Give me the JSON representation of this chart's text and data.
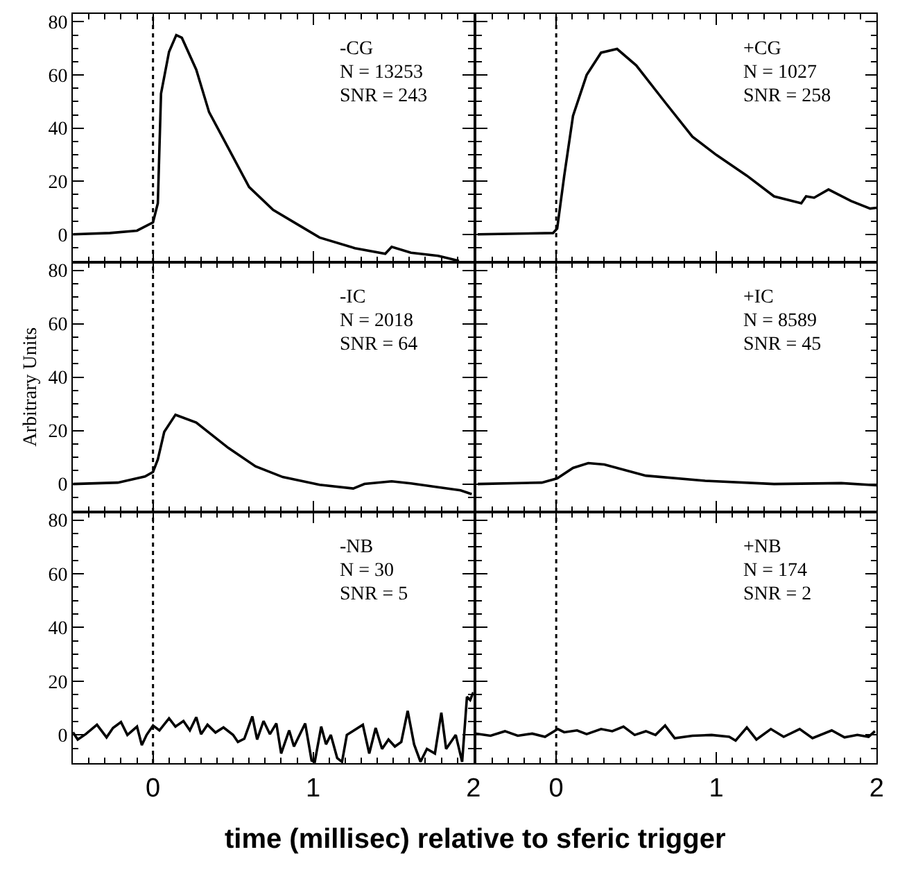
{
  "chart_data": [
    {
      "type": "line",
      "xlim": [
        -0.5,
        2
      ],
      "ylim": [
        -10.5,
        83
      ],
      "xticks": [
        0,
        1,
        2
      ],
      "yticks": [
        0,
        20,
        40,
        60,
        80
      ],
      "tick_labels": "y",
      "series": [
        {
          "color": "#000000",
          "x": [
            -0.5,
            -0.27,
            -0.1,
            0,
            0.03,
            0.05,
            0.1,
            0.145,
            0.18,
            0.27,
            0.35,
            0.47,
            0.6,
            0.75,
            0.92,
            1.04,
            1.26,
            1.45,
            1.49,
            1.61,
            1.78,
            1.91
          ],
          "values": [
            0,
            0.5,
            1.4,
            4.5,
            11.7,
            53,
            68.7,
            75,
            74,
            62,
            46,
            32.5,
            17.8,
            9.2,
            3.1,
            -1.2,
            -5.2,
            -7.3,
            -4.7,
            -6.9,
            -8.1,
            -10
          ]
        }
      ],
      "ref_lines": [
        {
          "axis": "x",
          "value": 0,
          "line_style": "dotted",
          "color": "#000000"
        }
      ],
      "annotations": [
        "-CG",
        "N = 13253",
        "SNR = 243"
      ]
    },
    {
      "type": "line",
      "xlim": [
        -0.5,
        2
      ],
      "ylim": [
        -10.5,
        83
      ],
      "xticks": [
        0,
        1,
        2
      ],
      "yticks": [
        0,
        20,
        40,
        60,
        80
      ],
      "tick_labels": false,
      "series": [
        {
          "color": "#000000",
          "x": [
            -0.49,
            -0.02,
            0.006,
            0.05,
            0.105,
            0.19,
            0.28,
            0.38,
            0.5,
            0.68,
            0.85,
            1.0,
            1.19,
            1.36,
            1.53,
            1.56,
            1.61,
            1.7,
            1.84,
            1.96,
            2.0
          ],
          "values": [
            0,
            0.5,
            2.2,
            22,
            44.6,
            60,
            68.4,
            69.8,
            63.6,
            49.7,
            36.8,
            29.9,
            22.1,
            14.3,
            11.7,
            14.3,
            13.8,
            16.9,
            12.6,
            9.7,
            10
          ]
        }
      ],
      "ref_lines": [
        {
          "axis": "x",
          "value": 0,
          "line_style": "dotted",
          "color": "#000000"
        }
      ],
      "annotations": [
        "+CG",
        "N = 1027",
        "SNR = 258"
      ]
    },
    {
      "type": "line",
      "ylabel": "Arbitrary Units",
      "xlim": [
        -0.5,
        2
      ],
      "ylim": [
        -10.5,
        83
      ],
      "xticks": [
        0,
        1,
        2
      ],
      "yticks": [
        0,
        20,
        40,
        60,
        80
      ],
      "tick_labels": "y",
      "series": [
        {
          "color": "#000000",
          "x": [
            -0.5,
            -0.22,
            -0.05,
            0,
            0.03,
            0.07,
            0.14,
            0.27,
            0.47,
            0.64,
            0.81,
            1.04,
            1.25,
            1.32,
            1.49,
            1.61,
            1.78,
            1.92,
            1.99
          ],
          "values": [
            0,
            0.5,
            2.8,
            4.5,
            9.2,
            19.5,
            25.9,
            23,
            13.5,
            6.6,
            2.6,
            -0.3,
            -1.7,
            0,
            1,
            0.2,
            -1.2,
            -2.4,
            -3.8
          ]
        }
      ],
      "ref_lines": [
        {
          "axis": "x",
          "value": 0,
          "line_style": "dotted",
          "color": "#000000"
        }
      ],
      "annotations": [
        "-IC",
        "N = 2018",
        "SNR = 64"
      ]
    },
    {
      "type": "line",
      "xlim": [
        -0.5,
        2
      ],
      "ylim": [
        -10.5,
        83
      ],
      "xticks": [
        0,
        1,
        2
      ],
      "yticks": [
        0,
        20,
        40,
        60,
        80
      ],
      "tick_labels": false,
      "series": [
        {
          "color": "#000000",
          "x": [
            -0.49,
            -0.09,
            0.006,
            0.105,
            0.2,
            0.3,
            0.56,
            0.93,
            1.36,
            1.78,
            2.0
          ],
          "values": [
            0,
            0.5,
            2.1,
            6,
            7.8,
            7.3,
            3.1,
            1.2,
            0,
            0.3,
            -0.5
          ]
        }
      ],
      "ref_lines": [
        {
          "axis": "x",
          "value": 0,
          "line_style": "dotted",
          "color": "#000000"
        }
      ],
      "annotations": [
        "+IC",
        "N = 8589",
        "SNR = 45"
      ]
    },
    {
      "type": "line",
      "xlabel": "time (millisec) relative to sferic trigger",
      "xlim": [
        -0.5,
        2
      ],
      "ylim": [
        -10.5,
        83
      ],
      "xticks": [
        0,
        1,
        2
      ],
      "yticks": [
        0,
        20,
        40,
        60,
        80
      ],
      "series": [
        {
          "color": "#000000",
          "x": [
            -0.5,
            -0.47,
            -0.42,
            -0.35,
            -0.29,
            -0.25,
            -0.2,
            -0.16,
            -0.1,
            -0.07,
            -0.04,
            0,
            0.04,
            0.1,
            0.14,
            0.19,
            0.23,
            0.27,
            0.3,
            0.34,
            0.39,
            0.44,
            0.5,
            0.53,
            0.57,
            0.62,
            0.65,
            0.69,
            0.73,
            0.77,
            0.8,
            0.85,
            0.88,
            0.95,
            0.99,
            1.01,
            1.05,
            1.08,
            1.11,
            1.15,
            1.18,
            1.21,
            1.31,
            1.35,
            1.39,
            1.43,
            1.47,
            1.51,
            1.55,
            1.59,
            1.63,
            1.67,
            1.71,
            1.76,
            1.8,
            1.83,
            1.89,
            1.93,
            1.96,
            1.98,
            2.0
          ],
          "values": [
            1,
            -1.7,
            0.3,
            3.8,
            -0.9,
            2.6,
            4.8,
            0,
            3.1,
            -3.8,
            0,
            3.5,
            1.7,
            6.2,
            3.1,
            5.2,
            1.7,
            6.6,
            0.3,
            3.8,
            0.9,
            2.8,
            0,
            -2.6,
            -1.4,
            6.9,
            -1.7,
            5.2,
            0.3,
            4.3,
            -6.9,
            1.7,
            -4.3,
            4.3,
            -9.5,
            -10,
            3.1,
            -3.5,
            0,
            -8.6,
            -10,
            0,
            3.8,
            -6.9,
            2.6,
            -5.2,
            -1.7,
            -4.3,
            -2.6,
            9,
            -3.5,
            -10,
            -5.2,
            -6.9,
            8.3,
            -5.2,
            0,
            -10,
            14.2,
            13,
            15.9
          ]
        }
      ],
      "ref_lines": [
        {
          "axis": "x",
          "value": 0,
          "line_style": "dotted",
          "color": "#000000"
        }
      ],
      "annotations": [
        "-NB",
        "N = 30",
        "SNR = 5"
      ]
    },
    {
      "type": "line",
      "xlim": [
        -0.5,
        2
      ],
      "ylim": [
        -10.5,
        83
      ],
      "xticks": [
        0,
        1,
        2
      ],
      "yticks": [
        0,
        20,
        40,
        60,
        80
      ],
      "tick_labels": "x",
      "series": [
        {
          "color": "#000000",
          "x": [
            -0.5,
            -0.41,
            -0.32,
            -0.24,
            -0.15,
            -0.07,
            0.01,
            0.05,
            0.13,
            0.19,
            0.28,
            0.35,
            0.42,
            0.49,
            0.56,
            0.62,
            0.68,
            0.74,
            0.85,
            0.97,
            1.08,
            1.12,
            1.19,
            1.25,
            1.34,
            1.42,
            1.52,
            1.6,
            1.72,
            1.8,
            1.88,
            1.95,
            1.99
          ],
          "values": [
            0.5,
            -0.3,
            1.4,
            -0.3,
            0.5,
            -0.7,
            2.2,
            1,
            1.7,
            0.3,
            2.2,
            1.4,
            3.1,
            0,
            1.4,
            0,
            3.5,
            -1.2,
            -0.3,
            0,
            -0.7,
            -2.1,
            2.8,
            -1.7,
            2.2,
            -0.7,
            2.2,
            -1.2,
            1.7,
            -0.9,
            0,
            -0.7,
            1.4
          ]
        }
      ],
      "ref_lines": [
        {
          "axis": "x",
          "value": 0,
          "line_style": "dotted",
          "color": "#000000"
        }
      ],
      "annotations": [
        "+NB",
        "N = 174",
        "SNR = 2"
      ]
    }
  ]
}
